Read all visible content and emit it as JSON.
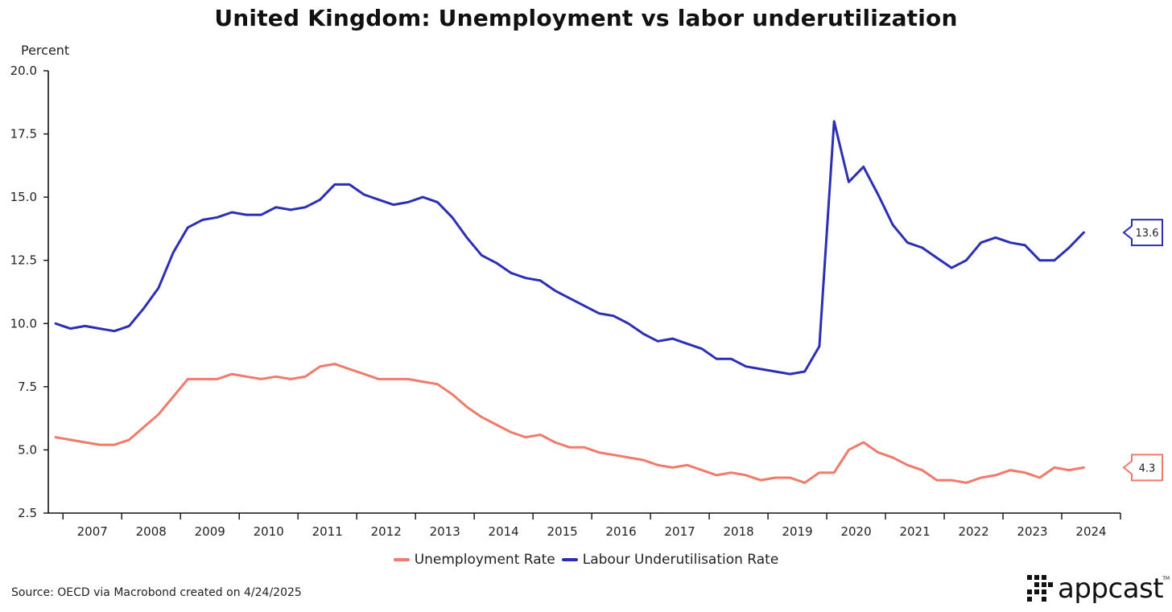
{
  "chart_data": {
    "type": "line",
    "title": "United Kingdom: Unemployment vs labor underutilization",
    "ylabel": "Percent",
    "xlabel": "",
    "ylim": [
      2.5,
      20.0
    ],
    "xlim": [
      2006.75,
      2025.0
    ],
    "yticks": [
      "2.5",
      "5.0",
      "7.5",
      "10.0",
      "12.5",
      "15.0",
      "17.5",
      "20.0"
    ],
    "ytick_values": [
      2.5,
      5.0,
      7.5,
      10.0,
      12.5,
      15.0,
      17.5,
      20.0
    ],
    "xtick_labels": [
      "2007",
      "2008",
      "2009",
      "2010",
      "2011",
      "2012",
      "2013",
      "2014",
      "2015",
      "2016",
      "2017",
      "2018",
      "2019",
      "2020",
      "2021",
      "2022",
      "2023",
      "2024"
    ],
    "x_start": 2006.875,
    "x_step": 0.25,
    "series": [
      {
        "name": "Unemployment Rate",
        "color": "#f07b6b",
        "last_label": "4.3",
        "values": [
          5.5,
          5.4,
          5.3,
          5.2,
          5.2,
          5.4,
          5.9,
          6.4,
          7.1,
          7.8,
          7.8,
          7.8,
          8.0,
          7.9,
          7.8,
          7.9,
          7.8,
          7.9,
          8.3,
          8.4,
          8.2,
          8.0,
          7.8,
          7.8,
          7.8,
          7.7,
          7.6,
          7.2,
          6.7,
          6.3,
          6.0,
          5.7,
          5.5,
          5.6,
          5.3,
          5.1,
          5.1,
          4.9,
          4.8,
          4.7,
          4.6,
          4.4,
          4.3,
          4.4,
          4.2,
          4.0,
          4.1,
          4.0,
          3.8,
          3.9,
          3.9,
          3.7,
          4.1,
          4.1,
          5.0,
          5.3,
          4.9,
          4.7,
          4.4,
          4.2,
          3.8,
          3.8,
          3.7,
          3.9,
          4.0,
          4.2,
          4.1,
          3.9,
          4.3,
          4.2,
          4.3
        ]
      },
      {
        "name": "Labour Underutilisation Rate",
        "color": "#2b2fb5",
        "last_label": "13.6",
        "values": [
          10.0,
          9.8,
          9.9,
          9.8,
          9.7,
          9.9,
          10.6,
          11.4,
          12.8,
          13.8,
          14.1,
          14.2,
          14.4,
          14.3,
          14.3,
          14.6,
          14.5,
          14.6,
          14.9,
          15.5,
          15.5,
          15.1,
          14.9,
          14.7,
          14.8,
          15.0,
          14.8,
          14.2,
          13.4,
          12.7,
          12.4,
          12.0,
          11.8,
          11.7,
          11.3,
          11.0,
          10.7,
          10.4,
          10.3,
          10.0,
          9.6,
          9.3,
          9.4,
          9.2,
          9.0,
          8.6,
          8.6,
          8.3,
          8.2,
          8.1,
          8.0,
          8.1,
          9.1,
          18.0,
          15.6,
          16.2,
          15.1,
          13.9,
          13.2,
          13.0,
          12.6,
          12.2,
          12.5,
          13.2,
          13.4,
          13.2,
          13.1,
          12.5,
          12.5,
          13.0,
          13.6
        ]
      }
    ]
  },
  "source_note": "Source: OECD via Macrobond created on 4/24/2025",
  "brand": {
    "name": "appcast",
    "tm": "TM"
  }
}
